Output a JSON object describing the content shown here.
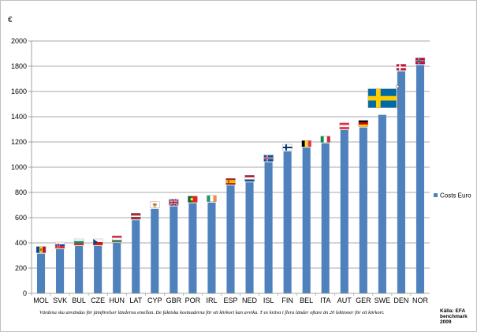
{
  "chart_data": {
    "type": "bar",
    "unit_label": "€",
    "categories": [
      "MOL",
      "SVK",
      "BUL",
      "CZE",
      "HUN",
      "LAT",
      "CYP",
      "GBR",
      "POR",
      "IRL",
      "ESP",
      "NED",
      "ISL",
      "FIN",
      "BEL",
      "ITA",
      "AUT",
      "GER",
      "SWE",
      "DEN",
      "NOR"
    ],
    "series": [
      {
        "name": "Costs Euro",
        "color": "#4f81bd",
        "values": [
          315,
          350,
          375,
          375,
          400,
          580,
          670,
          690,
          715,
          720,
          855,
          880,
          1040,
          1125,
          1155,
          1190,
          1295,
          1315,
          1415,
          1760,
          1810
        ]
      }
    ],
    "ylim": [
      0,
      2000
    ],
    "yticks": [
      0,
      200,
      400,
      600,
      800,
      1000,
      1200,
      1400,
      1600,
      1800,
      2000
    ],
    "grid": true,
    "legend_position": "right",
    "flag_icons": [
      "moldova-flag-icon",
      "slovakia-flag-icon",
      "bulgaria-flag-icon",
      "czech-flag-icon",
      "hungary-flag-icon",
      "latvia-flag-icon",
      "cyprus-flag-icon",
      "uk-flag-icon",
      "portugal-flag-icon",
      "ireland-flag-icon",
      "spain-flag-icon",
      "netherlands-flag-icon",
      "iceland-flag-icon",
      "finland-flag-icon",
      "belgium-flag-icon",
      "italy-flag-icon",
      "austria-flag-icon",
      "germany-flag-icon",
      "sweden-flag-icon",
      "denmark-flag-icon",
      "norway-flag-icon"
    ]
  },
  "footnote": "Värdena ska användas för jämförelser länderna emellan. De faktiska kostnaderna för ett körkort kan avvika. T ex kräva i flera länder oftare än 20 lektioner för ett körkort.",
  "source": {
    "line1": "Källa: EFA",
    "line2": "benchmark",
    "line3": "2009"
  }
}
